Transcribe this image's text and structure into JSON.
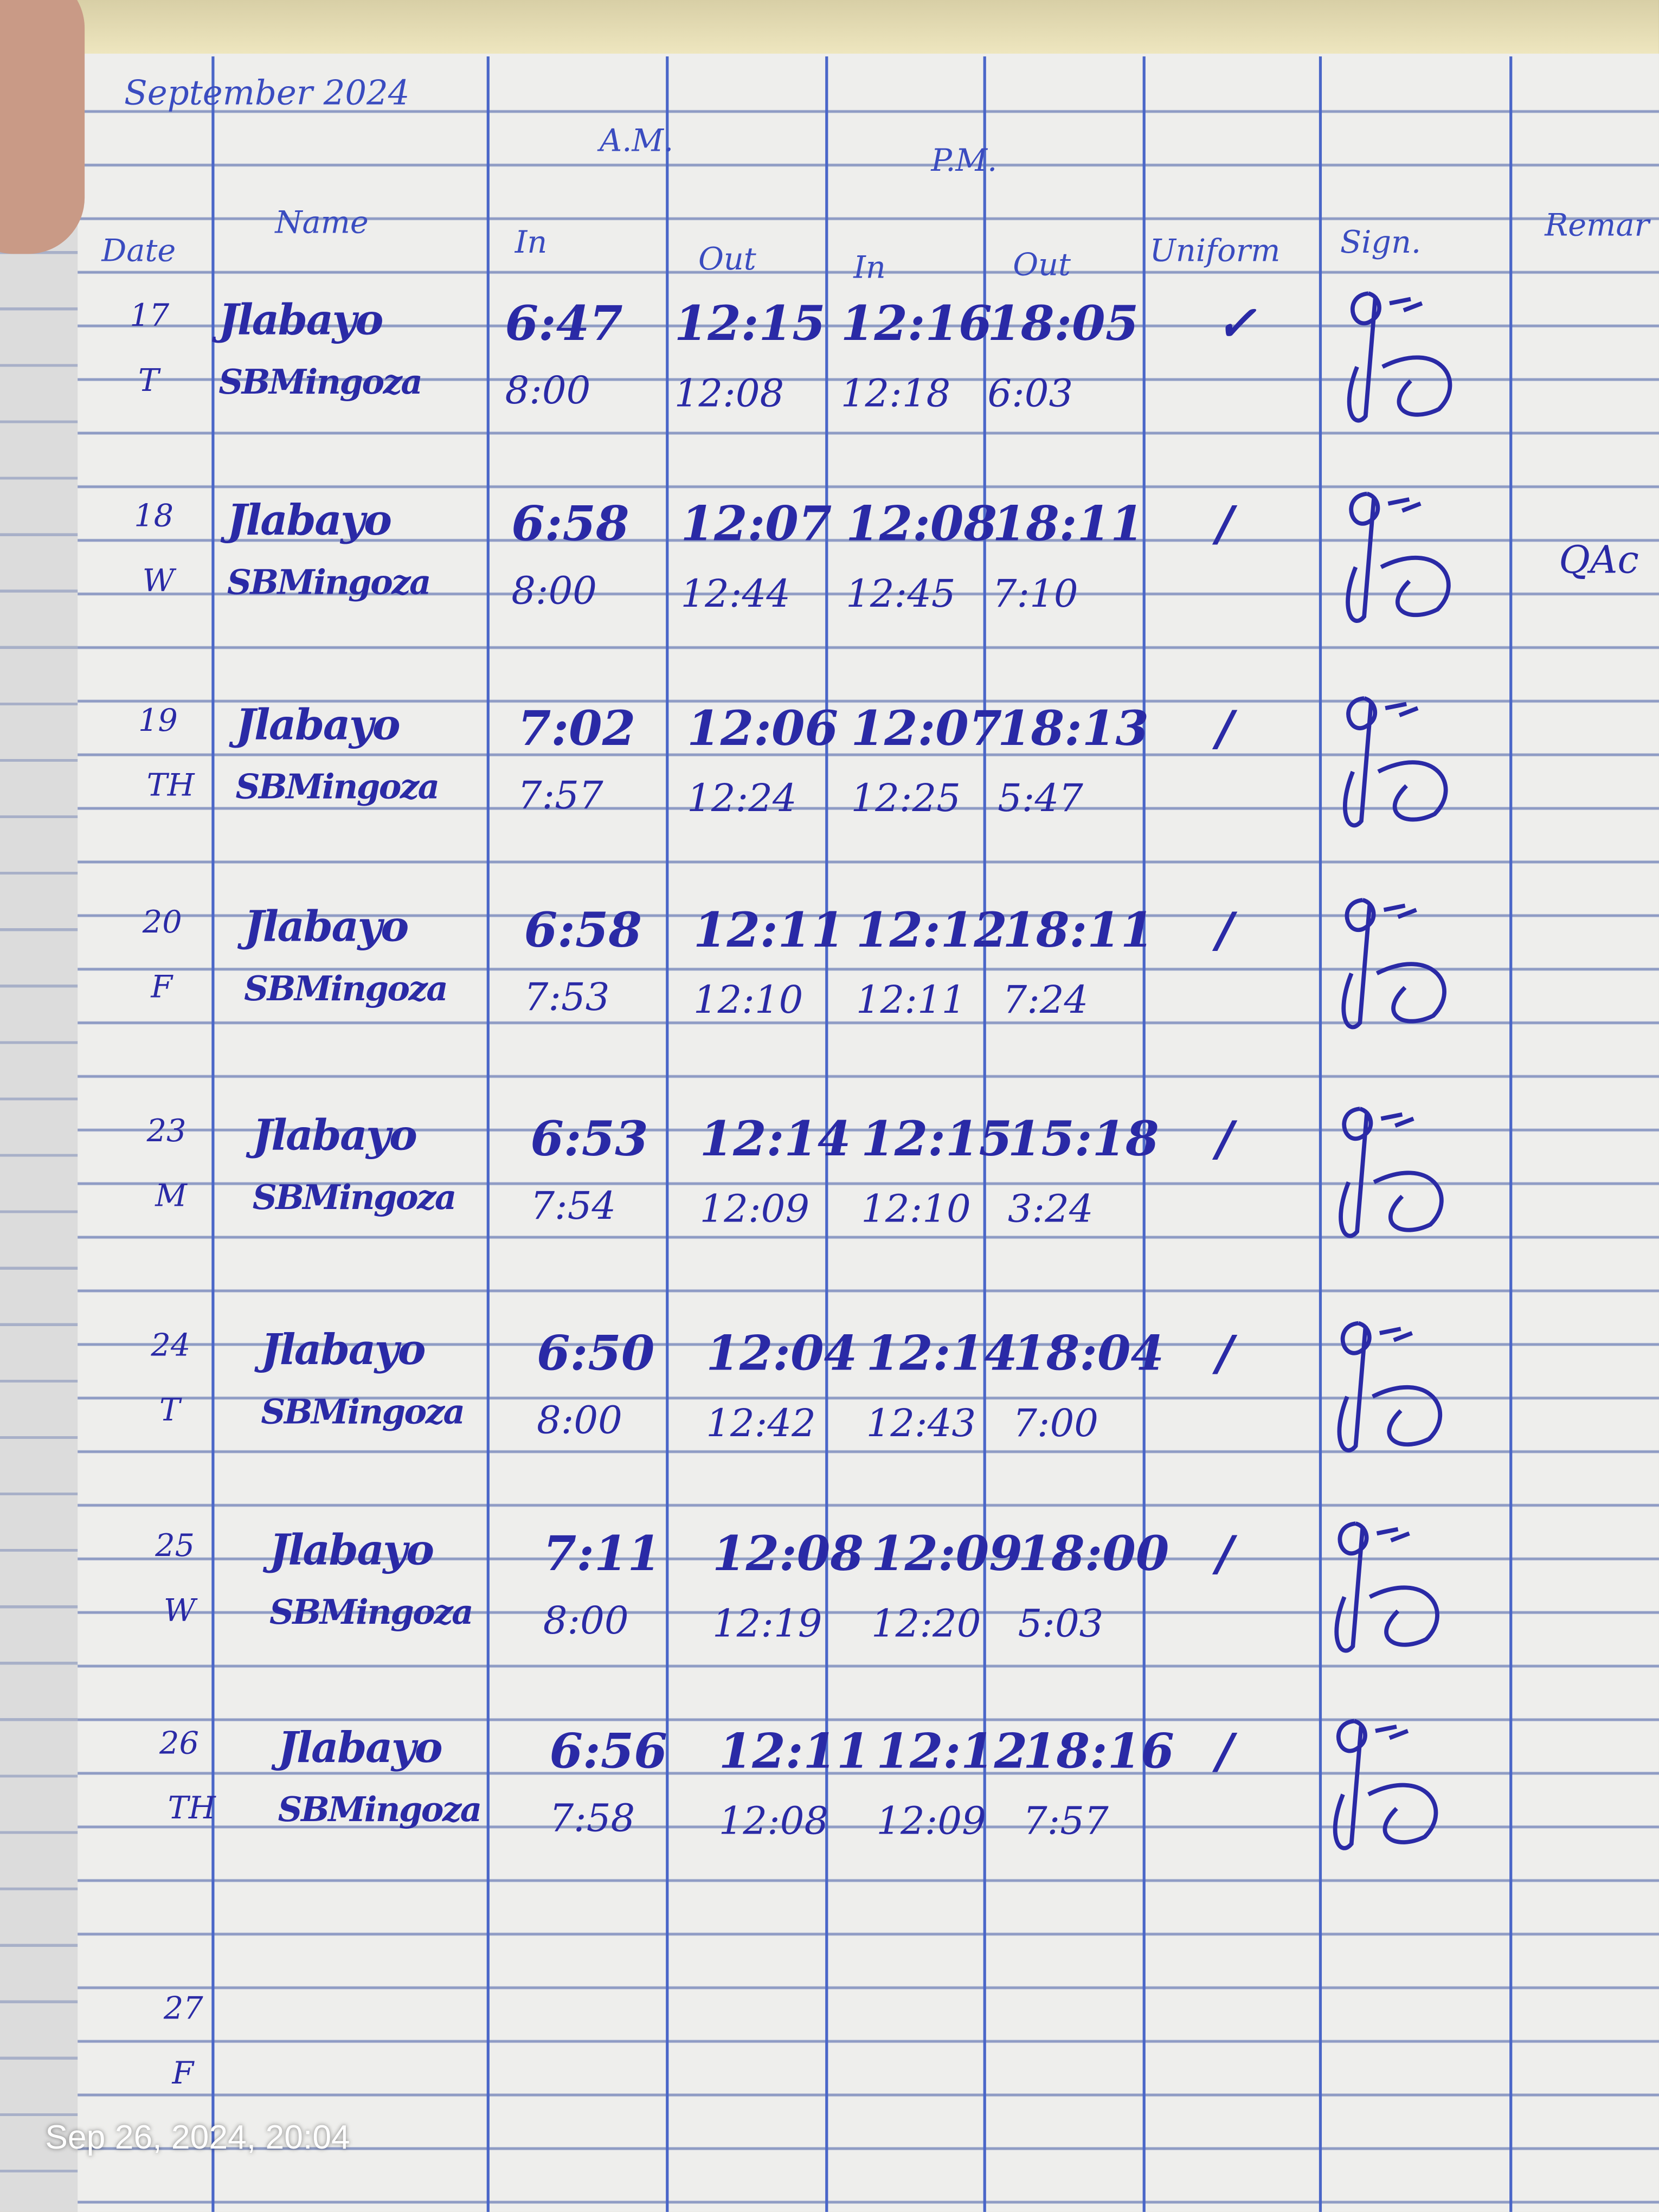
{
  "header": {
    "month": "September 2024",
    "am": "A.M.",
    "pm": "P.M.",
    "columns": {
      "date": "Date",
      "name": "Name",
      "am_in": "In",
      "am_out": "Out",
      "pm_in": "In",
      "pm_out": "Out",
      "uniform": "Uniform",
      "sign": "Sign.",
      "remarks": "Remar"
    }
  },
  "ink_color": "#2a2aa6",
  "days": [
    {
      "date": "17",
      "weekday": "T",
      "uniform": "✓",
      "remark": "",
      "entries": [
        {
          "name": "Jlabayo",
          "am_in": "6:47",
          "am_out": "12:15",
          "pm_in": "12:16",
          "pm_out": "18:05"
        },
        {
          "name": "SBMingoza",
          "am_in": "8:00",
          "am_out": "12:08",
          "pm_in": "12:18",
          "pm_out": "6:03"
        }
      ]
    },
    {
      "date": "18",
      "weekday": "W",
      "uniform": "/",
      "remark": "QAc",
      "entries": [
        {
          "name": "Jlabayo",
          "am_in": "6:58",
          "am_out": "12:07",
          "pm_in": "12:08",
          "pm_out": "18:11"
        },
        {
          "name": "SBMingoza",
          "am_in": "8:00",
          "am_out": "12:44",
          "pm_in": "12:45",
          "pm_out": "7:10"
        }
      ]
    },
    {
      "date": "19",
      "weekday": "TH",
      "uniform": "/",
      "remark": "",
      "entries": [
        {
          "name": "Jlabayo",
          "am_in": "7:02",
          "am_out": "12:06",
          "pm_in": "12:07",
          "pm_out": "18:13"
        },
        {
          "name": "SBMingoza",
          "am_in": "7:57",
          "am_out": "12:24",
          "pm_in": "12:25",
          "pm_out": "5:47"
        }
      ]
    },
    {
      "date": "20",
      "weekday": "F",
      "uniform": "/",
      "remark": "",
      "entries": [
        {
          "name": "Jlabayo",
          "am_in": "6:58",
          "am_out": "12:11",
          "pm_in": "12:12",
          "pm_out": "18:11"
        },
        {
          "name": "SBMingoza",
          "am_in": "7:53",
          "am_out": "12:10",
          "pm_in": "12:11",
          "pm_out": "7:24"
        }
      ]
    },
    {
      "date": "23",
      "weekday": "M",
      "uniform": "/",
      "remark": "",
      "entries": [
        {
          "name": "Jlabayo",
          "am_in": "6:53",
          "am_out": "12:14",
          "pm_in": "12:15",
          "pm_out": "15:18"
        },
        {
          "name": "SBMingoza",
          "am_in": "7:54",
          "am_out": "12:09",
          "pm_in": "12:10",
          "pm_out": "3:24"
        }
      ]
    },
    {
      "date": "24",
      "weekday": "T",
      "uniform": "/",
      "remark": "",
      "entries": [
        {
          "name": "Jlabayo",
          "am_in": "6:50",
          "am_out": "12:04",
          "pm_in": "12:14",
          "pm_out": "18:04"
        },
        {
          "name": "SBMingoza",
          "am_in": "8:00",
          "am_out": "12:42",
          "pm_in": "12:43",
          "pm_out": "7:00"
        }
      ]
    },
    {
      "date": "25",
      "weekday": "W",
      "uniform": "/",
      "remark": "",
      "entries": [
        {
          "name": "Jlabayo",
          "am_in": "7:11",
          "am_out": "12:08",
          "pm_in": "12:09",
          "pm_out": "18:00"
        },
        {
          "name": "SBMingoza",
          "am_in": "8:00",
          "am_out": "12:19",
          "pm_in": "12:20",
          "pm_out": "5:03"
        }
      ]
    },
    {
      "date": "26",
      "weekday": "TH",
      "uniform": "/",
      "remark": "",
      "entries": [
        {
          "name": "Jlabayo",
          "am_in": "6:56",
          "am_out": "12:11",
          "pm_in": "12:12",
          "pm_out": "18:16"
        },
        {
          "name": "SBMingoza",
          "am_in": "7:58",
          "am_out": "12:08",
          "pm_in": "12:09",
          "pm_out": "7:57"
        }
      ]
    },
    {
      "date": "27",
      "weekday": "F",
      "uniform": "",
      "remark": "",
      "entries": []
    }
  ],
  "photo_timestamp": "Sep 26, 2024, 20:04"
}
